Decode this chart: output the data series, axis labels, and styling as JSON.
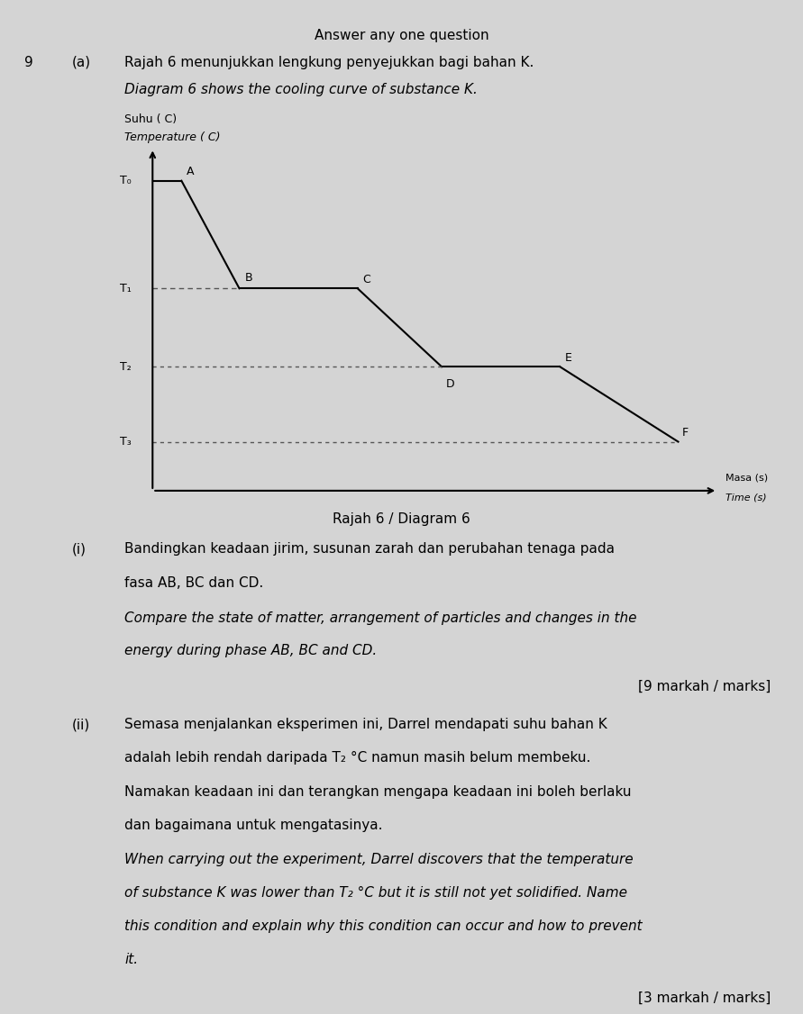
{
  "page_title": "Answer any one question",
  "question_number": "9",
  "question_label": "(a)",
  "malay_q": "Rajah 6 menunjukkan lengkung penyejukkan bagi bahan K.",
  "english_q": "Diagram 6 shows the cooling curve of substance K.",
  "ylabel_malay": "Suhu ( C)",
  "ylabel_english": "Temperature ( C)",
  "xlabel_malay": "Masa (s)",
  "xlabel_english": "Time (s)",
  "diagram_label": "Rajah 6 / Diagram 6",
  "background_color": "#d4d4d4",
  "text_color": "#000000",
  "curve_color": "#000000",
  "dashed_color": "#555555",
  "sub_i_label": "(i)",
  "sub_i_malay_line1": "Bandingkan keadaan jirim, susunan zarah dan perubahan tenaga pada",
  "sub_i_malay_line2": "fasa AB, BC dan CD.",
  "sub_i_eng_line1": "Compare the state of matter, arrangement of particles and changes in the",
  "sub_i_eng_line2": "energy during phase AB, BC and CD.",
  "sub_i_marks": "[9 markah / marks]",
  "sub_ii_label": "(ii)",
  "sub_ii_malay_line1": "Semasa menjalankan eksperimen ini, Darrel mendapati suhu bahan K",
  "sub_ii_malay_line2": "adalah lebih rendah daripada T₂ °C namun masih belum membeku.",
  "sub_ii_malay_line3": "Namakan keadaan ini dan terangkan mengapa keadaan ini boleh berlaku",
  "sub_ii_malay_line4": "dan bagaimana untuk mengatasinya.",
  "sub_ii_eng_line1": "When carrying out the experiment, Darrel discovers that the temperature",
  "sub_ii_eng_line2": "of substance K was lower than T₂ °C but it is still not yet solidified. Name",
  "sub_ii_eng_line3": "this condition and explain why this condition can occur and how to prevent",
  "sub_ii_eng_line4": "it.",
  "sub_ii_marks": "[3 markah / marks]",
  "T0_label": "T₀",
  "T1_label": "T₁",
  "T2_label": "T₂",
  "T3_label": "T₃",
  "pt_A": "A",
  "pt_B": "B",
  "pt_C": "C",
  "pt_D": "D",
  "pt_E": "E",
  "pt_F": "F"
}
